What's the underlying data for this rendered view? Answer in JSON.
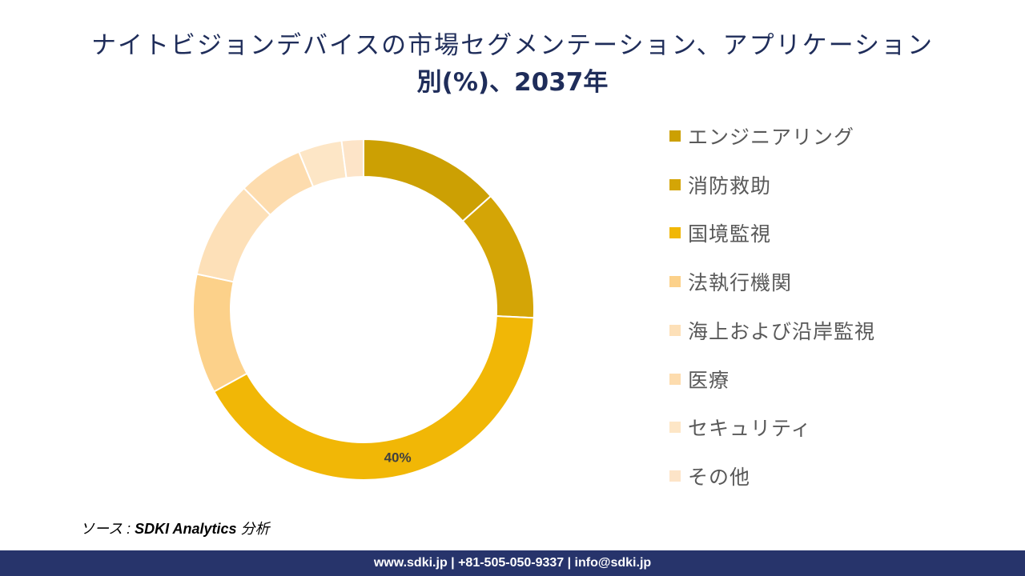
{
  "header": {
    "title_line1": "ナイトビジョンデバイスの市場セグメンテーション、アプリケーション",
    "title_line2": "別(%)、2037年"
  },
  "chart_data": {
    "type": "pie",
    "variant": "donut",
    "title": "ナイトビジョンデバイスの市場セグメンテーション、アプリケーション別(%)、2037年",
    "categories": [
      "エンジニアリング",
      "消防救助",
      "国境監視",
      "法執行機関",
      "海上および沿岸監視",
      "医療",
      "セキュリティ",
      "その他"
    ],
    "values": [
      13,
      12,
      40,
      11,
      9,
      6,
      4,
      2
    ],
    "unit": "%",
    "shown_data_labels": {
      "国境監視": "40%"
    },
    "colors": [
      "#cca003",
      "#d4a506",
      "#f1b706",
      "#fcd18a",
      "#fde0b8",
      "#fddcae",
      "#fde6c6",
      "#fde4c8"
    ],
    "legend_position": "right"
  },
  "source": {
    "prefix": "ソース : ",
    "brand": "SDKI Analytics",
    "suffix": " 分析"
  },
  "footer": {
    "text": "www.sdki.jp | +81-505-050-9337 | info@sdki.jp"
  }
}
